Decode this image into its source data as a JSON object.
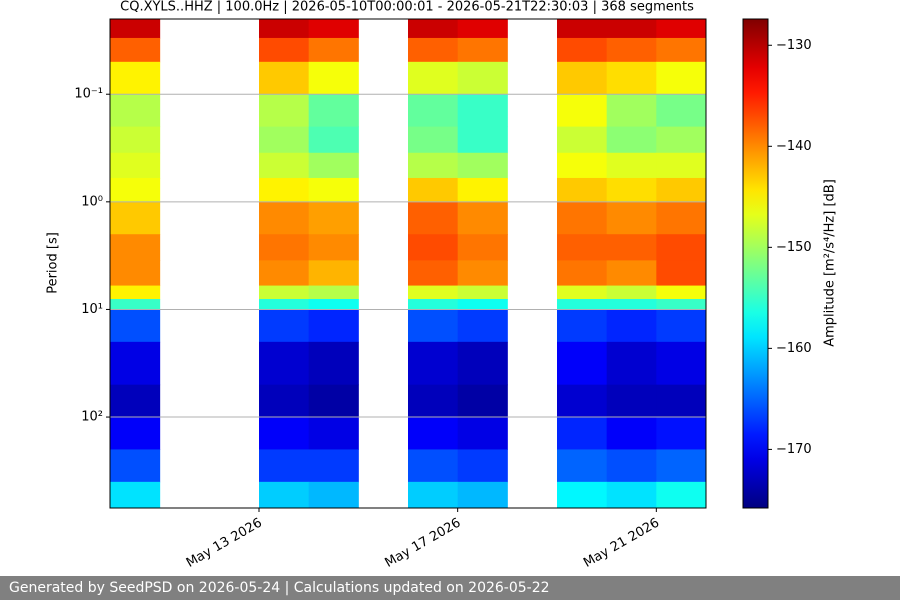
{
  "chart_data": {
    "type": "heatmap",
    "title": "CQ.XYLS..HHZ | 100.0Hz | 2026-05-10T00:00:01 - 2026-05-21T22:30:03 | 368 segments",
    "y_label": "Period [s]",
    "colorbar_label": "Amplitude [m²/s⁴/Hz] [dB]",
    "colormap": "jet",
    "y_log": true,
    "y_inverted": true,
    "grid": true,
    "x": [
      "2026-05-10",
      "2026-05-11",
      "2026-05-12",
      "2026-05-13",
      "2026-05-14",
      "2026-05-15",
      "2026-05-16",
      "2026-05-17",
      "2026-05-18",
      "2026-05-19",
      "2026-05-20",
      "2026-05-21"
    ],
    "xlim": [
      "2026-05-10",
      "2026-05-22"
    ],
    "xticks": [
      {
        "value": "2026-05-13",
        "label": "May 13 2026"
      },
      {
        "value": "2026-05-17",
        "label": "May 17 2026"
      },
      {
        "value": "2026-05-21",
        "label": "May 21 2026"
      }
    ],
    "y_bins": [
      0.02,
      0.03,
      0.05,
      0.1,
      0.2,
      0.35,
      0.6,
      1,
      2,
      3.5,
      6,
      8,
      10,
      20,
      50,
      100,
      200,
      400,
      700
    ],
    "ylim": [
      0.02,
      700
    ],
    "yticks": [
      {
        "value": 0.1,
        "label": "10⁻¹"
      },
      {
        "value": 1,
        "label": "10⁰"
      },
      {
        "value": 10,
        "label": "10¹"
      },
      {
        "value": 100,
        "label": "10²"
      }
    ],
    "z": [
      [
        -131,
        null,
        null,
        -131,
        -132,
        null,
        -131,
        -132,
        null,
        -131,
        -131,
        -132
      ],
      [
        -138,
        null,
        null,
        -137,
        -139,
        null,
        -138,
        -139,
        null,
        -137,
        -138,
        -139
      ],
      [
        -145,
        null,
        null,
        -143,
        -146,
        null,
        -147,
        -148,
        null,
        -143,
        -144,
        -146
      ],
      [
        -149,
        null,
        null,
        -149,
        -153,
        null,
        -153,
        -155,
        null,
        -146,
        -150,
        -152
      ],
      [
        -148,
        null,
        null,
        -150,
        -154,
        null,
        -152,
        -155,
        null,
        -148,
        -151,
        -150
      ],
      [
        -147,
        null,
        null,
        -148,
        -150,
        null,
        -149,
        -150,
        null,
        -146,
        -147,
        -147
      ],
      [
        -146,
        null,
        null,
        -145,
        -146,
        null,
        -143,
        -145,
        null,
        -143,
        -144,
        -143
      ],
      [
        -143,
        null,
        null,
        -140,
        -141,
        null,
        -138,
        -140,
        null,
        -139,
        -140,
        -139
      ],
      [
        -140,
        null,
        null,
        -139,
        -140,
        null,
        -137,
        -139,
        null,
        -138,
        -138,
        -137
      ],
      [
        -140,
        null,
        null,
        -140,
        -142,
        null,
        -138,
        -140,
        null,
        -139,
        -140,
        -137
      ],
      [
        -145,
        null,
        null,
        -148,
        -149,
        null,
        -147,
        -148,
        null,
        -147,
        -148,
        -146
      ],
      [
        -155,
        null,
        null,
        -156,
        -157,
        null,
        -156,
        -157,
        null,
        -156,
        -156,
        -155
      ],
      [
        -166,
        null,
        null,
        -167,
        -168,
        null,
        -166,
        -167,
        null,
        -167,
        -168,
        -167
      ],
      [
        -171,
        null,
        null,
        -172,
        -173,
        null,
        -172,
        -173,
        null,
        -170,
        -172,
        -171
      ],
      [
        -173,
        null,
        null,
        -173,
        -174,
        null,
        -173,
        -174,
        null,
        -172,
        -173,
        -173
      ],
      [
        -170,
        null,
        null,
        -170,
        -171,
        null,
        -170,
        -171,
        null,
        -168,
        -170,
        -169
      ],
      [
        -166,
        null,
        null,
        -167,
        -167,
        null,
        -166,
        -167,
        null,
        -165,
        -166,
        -165
      ],
      [
        -159,
        null,
        null,
        -160,
        -161,
        null,
        -160,
        -161,
        null,
        -158,
        -159,
        -157
      ]
    ],
    "clim": [
      -175.8,
      -127.4
    ],
    "cticks": [
      {
        "value": -130,
        "label": "−130"
      },
      {
        "value": -140,
        "label": "−140"
      },
      {
        "value": -150,
        "label": "−150"
      },
      {
        "value": -160,
        "label": "−160"
      },
      {
        "value": -170,
        "label": "−170"
      }
    ]
  },
  "footer": "Generated by SeedPSD on 2026-05-24 | Calculations updated on 2026-05-22"
}
